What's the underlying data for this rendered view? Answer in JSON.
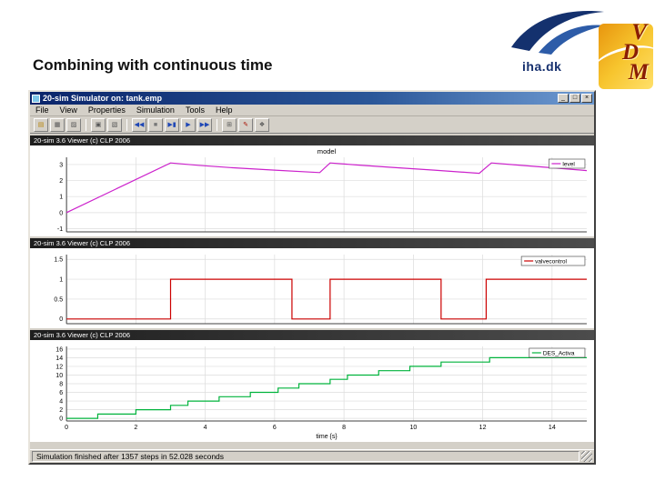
{
  "slide": {
    "title": "Combining with continuous time"
  },
  "logos": {
    "iha": "iha.dk",
    "vdm": [
      "V",
      "D",
      "M"
    ]
  },
  "window": {
    "title": "20-sim Simulator on: tank.emp",
    "buttons": {
      "minimize": "_",
      "maximize": "□",
      "close": "×"
    },
    "menu": [
      "File",
      "View",
      "Properties",
      "Simulation",
      "Tools",
      "Help"
    ],
    "toolbar": [
      {
        "name": "open",
        "glyph": "▤",
        "color": "#b8860b"
      },
      {
        "name": "save",
        "glyph": "▦",
        "color": "#555555"
      },
      {
        "name": "print",
        "glyph": "▨",
        "color": "#555555"
      },
      {
        "sep": true
      },
      {
        "name": "copy",
        "glyph": "▣",
        "color": "#555555"
      },
      {
        "name": "plot-properties",
        "glyph": "▧",
        "color": "#555555"
      },
      {
        "sep": true
      },
      {
        "name": "fast-rewind",
        "glyph": "◀◀",
        "color": "#1f47b5"
      },
      {
        "name": "stop",
        "glyph": "■",
        "color": "#777777"
      },
      {
        "name": "step",
        "glyph": "▶▮",
        "color": "#1f47b5"
      },
      {
        "name": "play",
        "glyph": "▶",
        "color": "#1f47b5"
      },
      {
        "name": "fast-forward",
        "glyph": "▶▶",
        "color": "#1f47b5"
      },
      {
        "sep": true
      },
      {
        "name": "numeric-values",
        "glyph": "⊞",
        "color": "#555555"
      },
      {
        "name": "pencil",
        "glyph": "✎",
        "color": "#aa1100"
      },
      {
        "name": "help-book",
        "glyph": "❖",
        "color": "#555555"
      }
    ],
    "status": "Simulation finished after 1357 steps in 52.028 seconds"
  },
  "viewers": [
    {
      "header": "20-sim 3.6 Viewer (c) CLP 2006"
    },
    {
      "header": "20-sim 3.6 Viewer (c) CLP 2006"
    },
    {
      "header": "20-sim 3.6 Viewer (c) CLP 2006"
    }
  ],
  "chart_data": [
    {
      "type": "line",
      "title": "model",
      "xlim": [
        0,
        15
      ],
      "ylim": [
        -1.2,
        3.45
      ],
      "xticks": [
        0,
        2,
        4,
        6,
        8,
        10,
        12,
        14
      ],
      "yticks": [
        3,
        2,
        1,
        0,
        -1
      ],
      "show_xlabels": false,
      "xlabel": "",
      "grid": true,
      "legend_position": "top-right",
      "series": [
        {
          "name": "level",
          "color": "#cc22cc",
          "points": [
            [
              0,
              0
            ],
            [
              3,
              3.1
            ],
            [
              3.8,
              2.95
            ],
            [
              4.8,
              2.8
            ],
            [
              6,
              2.65
            ],
            [
              7.3,
              2.5
            ],
            [
              7.6,
              3.1
            ],
            [
              8.4,
              2.97
            ],
            [
              9.4,
              2.82
            ],
            [
              10.6,
              2.65
            ],
            [
              11.9,
              2.45
            ],
            [
              12.25,
              3.1
            ],
            [
              13,
              2.97
            ],
            [
              14,
              2.8
            ],
            [
              15,
              2.62
            ]
          ]
        }
      ]
    },
    {
      "type": "line",
      "title": "",
      "xlim": [
        0,
        15
      ],
      "ylim": [
        -0.12,
        1.62
      ],
      "xticks": [
        0,
        2,
        4,
        6,
        8,
        10,
        12,
        14
      ],
      "yticks": [
        1.5,
        1,
        0.5,
        0
      ],
      "show_xlabels": false,
      "xlabel": "",
      "grid": true,
      "legend_position": "top-right",
      "series": [
        {
          "name": "valvecontrol",
          "color": "#cc0000",
          "points": [
            [
              0,
              0
            ],
            [
              3,
              0
            ],
            [
              3,
              1
            ],
            [
              6.5,
              1
            ],
            [
              6.5,
              0
            ],
            [
              7.6,
              0
            ],
            [
              7.6,
              1
            ],
            [
              10.8,
              1
            ],
            [
              10.8,
              0
            ],
            [
              12.1,
              0
            ],
            [
              12.1,
              1
            ],
            [
              15,
              1
            ]
          ]
        }
      ]
    },
    {
      "type": "line",
      "title": "",
      "xlim": [
        0,
        15
      ],
      "ylim": [
        -0.6,
        16.6
      ],
      "xticks": [
        0,
        2,
        4,
        6,
        8,
        10,
        12,
        14
      ],
      "yticks": [
        16,
        14,
        12,
        10,
        8,
        6,
        4,
        2,
        0
      ],
      "show_xlabels": true,
      "xlabel": "time {s}",
      "grid": true,
      "legend_position": "top-right",
      "series": [
        {
          "name": "DES_Activa",
          "color": "#00b33c",
          "points": [
            [
              0,
              0
            ],
            [
              0.9,
              0
            ],
            [
              0.9,
              1
            ],
            [
              2,
              1
            ],
            [
              2,
              2
            ],
            [
              3,
              2
            ],
            [
              3,
              3
            ],
            [
              3.5,
              3
            ],
            [
              3.5,
              4
            ],
            [
              4.4,
              4
            ],
            [
              4.4,
              5
            ],
            [
              5.3,
              5
            ],
            [
              5.3,
              6
            ],
            [
              6.1,
              6
            ],
            [
              6.1,
              7
            ],
            [
              6.7,
              7
            ],
            [
              6.7,
              8
            ],
            [
              7.6,
              8
            ],
            [
              7.6,
              9
            ],
            [
              8.1,
              9
            ],
            [
              8.1,
              10
            ],
            [
              9,
              10
            ],
            [
              9,
              11
            ],
            [
              9.9,
              11
            ],
            [
              9.9,
              12
            ],
            [
              10.8,
              12
            ],
            [
              10.8,
              13
            ],
            [
              12.2,
              13
            ],
            [
              12.2,
              14
            ],
            [
              15,
              14
            ]
          ]
        }
      ]
    }
  ]
}
